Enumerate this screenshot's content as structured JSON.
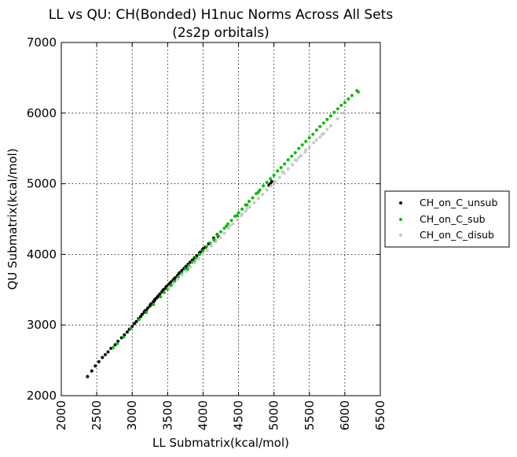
{
  "chart_data": {
    "type": "scatter",
    "title": "LL vs QU: CH(Bonded) H1nuc Norms Across All Sets",
    "subtitle": "(2s2p orbitals)",
    "xlabel": "LL Submatrix(kcal/mol)",
    "ylabel": "QU Submatrix(kcal/mol)",
    "xlim": [
      2000,
      6500
    ],
    "ylim": [
      2000,
      7000
    ],
    "xticks": [
      "2000",
      "2500",
      "3000",
      "3500",
      "4000",
      "4500",
      "5000",
      "5500",
      "6000",
      "6500"
    ],
    "yticks": [
      "2000",
      "3000",
      "4000",
      "5000",
      "6000",
      "7000"
    ],
    "grid": true,
    "legend_position": "right-outside",
    "series": [
      {
        "name": "CH_on_C_unsub",
        "color": "#000000",
        "points": [
          [
            2370,
            2270
          ],
          [
            2430,
            2350
          ],
          [
            2480,
            2420
          ],
          [
            2530,
            2480
          ],
          [
            2580,
            2540
          ],
          [
            2620,
            2580
          ],
          [
            2660,
            2620
          ],
          [
            2700,
            2670
          ],
          [
            2760,
            2720
          ],
          [
            2800,
            2770
          ],
          [
            2850,
            2820
          ],
          [
            2890,
            2860
          ],
          [
            2930,
            2900
          ],
          [
            2960,
            2940
          ],
          [
            3000,
            2980
          ],
          [
            3030,
            3020
          ],
          [
            3060,
            3050
          ],
          [
            3090,
            3090
          ],
          [
            3120,
            3120
          ],
          [
            3140,
            3150
          ],
          [
            3170,
            3180
          ],
          [
            3200,
            3210
          ],
          [
            3220,
            3240
          ],
          [
            3250,
            3270
          ],
          [
            3270,
            3300
          ],
          [
            3300,
            3330
          ],
          [
            3320,
            3360
          ],
          [
            3340,
            3380
          ],
          [
            3370,
            3410
          ],
          [
            3390,
            3440
          ],
          [
            3420,
            3470
          ],
          [
            3440,
            3500
          ],
          [
            3470,
            3520
          ],
          [
            3490,
            3550
          ],
          [
            3520,
            3580
          ],
          [
            3550,
            3610
          ],
          [
            3580,
            3640
          ],
          [
            3610,
            3670
          ],
          [
            3640,
            3700
          ],
          [
            3670,
            3740
          ],
          [
            3700,
            3770
          ],
          [
            3730,
            3800
          ],
          [
            3760,
            3830
          ],
          [
            3790,
            3860
          ],
          [
            3820,
            3890
          ],
          [
            3850,
            3920
          ],
          [
            3880,
            3950
          ],
          [
            3910,
            3980
          ],
          [
            3950,
            4020
          ],
          [
            3990,
            4060
          ],
          [
            4030,
            4100
          ],
          [
            4080,
            4150
          ],
          [
            4150,
            4230
          ],
          [
            4200,
            4280
          ],
          [
            3180,
            3200
          ],
          [
            3260,
            3290
          ],
          [
            3310,
            3340
          ],
          [
            3360,
            3400
          ],
          [
            3430,
            3480
          ],
          [
            3480,
            3540
          ],
          [
            3540,
            3600
          ],
          [
            3600,
            3660
          ],
          [
            3660,
            3730
          ],
          [
            4950,
            5000
          ],
          [
            4930,
            4980
          ],
          [
            4970,
            5030
          ],
          [
            4220,
            4250
          ],
          [
            4170,
            4190
          ],
          [
            3960,
            4030
          ],
          [
            4000,
            4080
          ]
        ]
      },
      {
        "name": "CH_on_C_sub",
        "color": "#00bf00",
        "points": [
          [
            2730,
            2680
          ],
          [
            2790,
            2740
          ],
          [
            2880,
            2830
          ],
          [
            2980,
            2950
          ],
          [
            3100,
            3080
          ],
          [
            3200,
            3180
          ],
          [
            3300,
            3290
          ],
          [
            3400,
            3400
          ],
          [
            3450,
            3460
          ],
          [
            3500,
            3510
          ],
          [
            3550,
            3560
          ],
          [
            3600,
            3620
          ],
          [
            3650,
            3680
          ],
          [
            3700,
            3730
          ],
          [
            3750,
            3790
          ],
          [
            3800,
            3840
          ],
          [
            3850,
            3890
          ],
          [
            3900,
            3950
          ],
          [
            3950,
            4000
          ],
          [
            4000,
            4050
          ],
          [
            4050,
            4110
          ],
          [
            4100,
            4160
          ],
          [
            4150,
            4210
          ],
          [
            4200,
            4270
          ],
          [
            4250,
            4320
          ],
          [
            4300,
            4370
          ],
          [
            4350,
            4430
          ],
          [
            4400,
            4480
          ],
          [
            4450,
            4540
          ],
          [
            4500,
            4590
          ],
          [
            4550,
            4640
          ],
          [
            4600,
            4700
          ],
          [
            4650,
            4750
          ],
          [
            4700,
            4800
          ],
          [
            4750,
            4860
          ],
          [
            4800,
            4910
          ],
          [
            4850,
            4970
          ],
          [
            4900,
            5020
          ],
          [
            4950,
            5070
          ],
          [
            5000,
            5120
          ],
          [
            5050,
            5180
          ],
          [
            5100,
            5230
          ],
          [
            5150,
            5280
          ],
          [
            5200,
            5340
          ],
          [
            5250,
            5390
          ],
          [
            5300,
            5440
          ],
          [
            5350,
            5500
          ],
          [
            5400,
            5550
          ],
          [
            5450,
            5600
          ],
          [
            5500,
            5650
          ],
          [
            5550,
            5700
          ],
          [
            5600,
            5760
          ],
          [
            5650,
            5810
          ],
          [
            5700,
            5860
          ],
          [
            5750,
            5910
          ],
          [
            5800,
            5960
          ],
          [
            5850,
            6010
          ],
          [
            5900,
            6060
          ],
          [
            5950,
            6110
          ],
          [
            6000,
            6150
          ],
          [
            6050,
            6200
          ],
          [
            6100,
            6250
          ],
          [
            6170,
            6320
          ],
          [
            6190,
            6300
          ],
          [
            4480,
            4550
          ],
          [
            4620,
            4700
          ],
          [
            4780,
            4880
          ],
          [
            3780,
            3790
          ],
          [
            3880,
            3900
          ],
          [
            4330,
            4400
          ]
        ]
      },
      {
        "name": "CH_on_C_disub",
        "color": "#c8c8c8",
        "points": [
          [
            3520,
            3530
          ],
          [
            3640,
            3650
          ],
          [
            3760,
            3760
          ],
          [
            3880,
            3880
          ],
          [
            4000,
            4000
          ],
          [
            4120,
            4120
          ],
          [
            4240,
            4240
          ],
          [
            4360,
            4370
          ],
          [
            4480,
            4490
          ],
          [
            4600,
            4610
          ],
          [
            4720,
            4730
          ],
          [
            4840,
            4850
          ],
          [
            4960,
            4970
          ],
          [
            5080,
            5090
          ],
          [
            5200,
            5210
          ],
          [
            5320,
            5330
          ],
          [
            5440,
            5450
          ],
          [
            5560,
            5580
          ],
          [
            5680,
            5700
          ],
          [
            5800,
            5820
          ],
          [
            5900,
            5920
          ],
          [
            5980,
            6000
          ],
          [
            5700,
            5710
          ],
          [
            5600,
            5620
          ],
          [
            5500,
            5520
          ],
          [
            5380,
            5400
          ],
          [
            5260,
            5270
          ],
          [
            5140,
            5150
          ],
          [
            5020,
            5030
          ],
          [
            4900,
            4910
          ],
          [
            4780,
            4790
          ],
          [
            4660,
            4670
          ],
          [
            4540,
            4550
          ],
          [
            4420,
            4430
          ],
          [
            4300,
            4300
          ],
          [
            4180,
            4180
          ],
          [
            4060,
            4060
          ],
          [
            3940,
            3940
          ],
          [
            3820,
            3820
          ],
          [
            3700,
            3710
          ],
          [
            3580,
            3590
          ],
          [
            5300,
            5340
          ],
          [
            5350,
            5370
          ],
          [
            5120,
            5170
          ],
          [
            4380,
            4410
          ],
          [
            4550,
            4570
          ],
          [
            4620,
            4650
          ],
          [
            5450,
            5480
          ],
          [
            5650,
            5660
          ],
          [
            5750,
            5770
          ]
        ]
      }
    ]
  }
}
